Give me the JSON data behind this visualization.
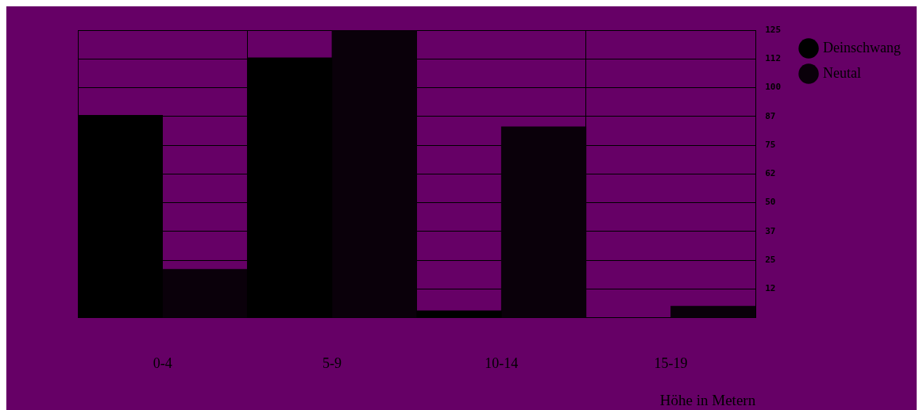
{
  "chart_data": {
    "type": "bar",
    "categories": [
      "0-4",
      "5-9",
      "10-14",
      "15-19"
    ],
    "xlabel": "Höhe in Metern",
    "series": [
      {
        "name": "Deinschwang",
        "color": "#000000",
        "values": [
          88,
          113,
          3,
          0
        ]
      },
      {
        "name": "Neutal",
        "color": "#0a000a",
        "values": [
          21,
          125,
          83,
          5
        ]
      }
    ],
    "ylim": [
      0,
      125
    ],
    "yticks": [
      {
        "value": 12.5,
        "label": "12"
      },
      25,
      {
        "value": 37.5,
        "label": "37"
      },
      50,
      {
        "value": 62.5,
        "label": "62"
      },
      75,
      {
        "value": 87.5,
        "label": "87"
      },
      100,
      {
        "value": 112.5,
        "label": "112"
      },
      125
    ],
    "grid": true,
    "legend": "right"
  }
}
